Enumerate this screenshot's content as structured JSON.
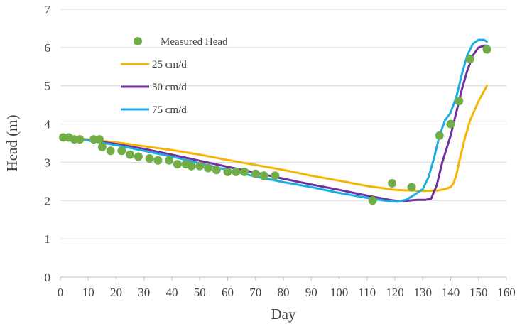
{
  "chart_data": {
    "type": "line",
    "title": "",
    "xlabel": "Day",
    "ylabel": "Head (m)",
    "xlim": [
      0,
      160
    ],
    "ylim": [
      0,
      7
    ],
    "x_ticks": [
      0,
      10,
      20,
      30,
      40,
      50,
      60,
      70,
      80,
      90,
      100,
      110,
      120,
      130,
      140,
      150,
      160
    ],
    "y_ticks": [
      0,
      1,
      2,
      3,
      4,
      5,
      6,
      7
    ],
    "grid": "horizontal",
    "legend_position": "top-left",
    "series": [
      {
        "name": "Measured Head",
        "kind": "scatter",
        "color": "#70AD47",
        "x": [
          1,
          3,
          5,
          7,
          12,
          14,
          15,
          18,
          22,
          25,
          28,
          32,
          35,
          39,
          42,
          45,
          47,
          50,
          53,
          56,
          60,
          63,
          66,
          70,
          73,
          77,
          112,
          119,
          126,
          136,
          140,
          143,
          147,
          153
        ],
        "y": [
          3.65,
          3.65,
          3.6,
          3.6,
          3.6,
          3.6,
          3.4,
          3.3,
          3.3,
          3.2,
          3.15,
          3.1,
          3.05,
          3.05,
          2.95,
          2.95,
          2.9,
          2.9,
          2.85,
          2.8,
          2.75,
          2.75,
          2.75,
          2.7,
          2.65,
          2.65,
          2.0,
          2.45,
          2.35,
          3.7,
          4.0,
          4.6,
          5.7,
          5.95
        ]
      },
      {
        "name": "25 cm/d",
        "kind": "line",
        "color": "#F4B400",
        "x": [
          1,
          5,
          10,
          20,
          30,
          40,
          50,
          60,
          70,
          80,
          90,
          100,
          110,
          120,
          130,
          135,
          138,
          140,
          141,
          142,
          143,
          145,
          147,
          150,
          153
        ],
        "y": [
          3.65,
          3.63,
          3.6,
          3.52,
          3.42,
          3.32,
          3.2,
          3.06,
          2.93,
          2.8,
          2.65,
          2.52,
          2.38,
          2.28,
          2.25,
          2.26,
          2.3,
          2.35,
          2.45,
          2.65,
          3.0,
          3.6,
          4.1,
          4.6,
          5.0
        ]
      },
      {
        "name": "50 cm/d",
        "kind": "line",
        "color": "#7030A0",
        "x": [
          1,
          5,
          10,
          20,
          30,
          40,
          50,
          60,
          70,
          80,
          90,
          100,
          110,
          118,
          122,
          125,
          128,
          131,
          133,
          135,
          137,
          140,
          142,
          144,
          146,
          148,
          150,
          152,
          153
        ],
        "y": [
          3.65,
          3.62,
          3.58,
          3.48,
          3.35,
          3.2,
          3.04,
          2.88,
          2.73,
          2.57,
          2.42,
          2.28,
          2.13,
          2.02,
          1.98,
          2.0,
          2.02,
          2.02,
          2.05,
          2.4,
          3.0,
          3.7,
          4.3,
          4.9,
          5.4,
          5.8,
          6.0,
          6.05,
          6.05
        ]
      },
      {
        "name": "75 cm/d",
        "kind": "line",
        "color": "#1CADE4",
        "x": [
          1,
          5,
          10,
          20,
          30,
          40,
          50,
          60,
          70,
          80,
          90,
          100,
          110,
          118,
          121,
          124,
          127,
          130,
          132,
          134,
          136,
          138,
          140,
          142,
          144,
          146,
          148,
          150,
          152,
          153
        ],
        "y": [
          3.65,
          3.62,
          3.57,
          3.45,
          3.3,
          3.15,
          2.97,
          2.8,
          2.63,
          2.48,
          2.35,
          2.2,
          2.07,
          1.98,
          1.97,
          2.02,
          2.15,
          2.3,
          2.6,
          3.1,
          3.7,
          4.1,
          4.3,
          4.7,
          5.3,
          5.8,
          6.1,
          6.2,
          6.2,
          6.15
        ]
      }
    ]
  }
}
